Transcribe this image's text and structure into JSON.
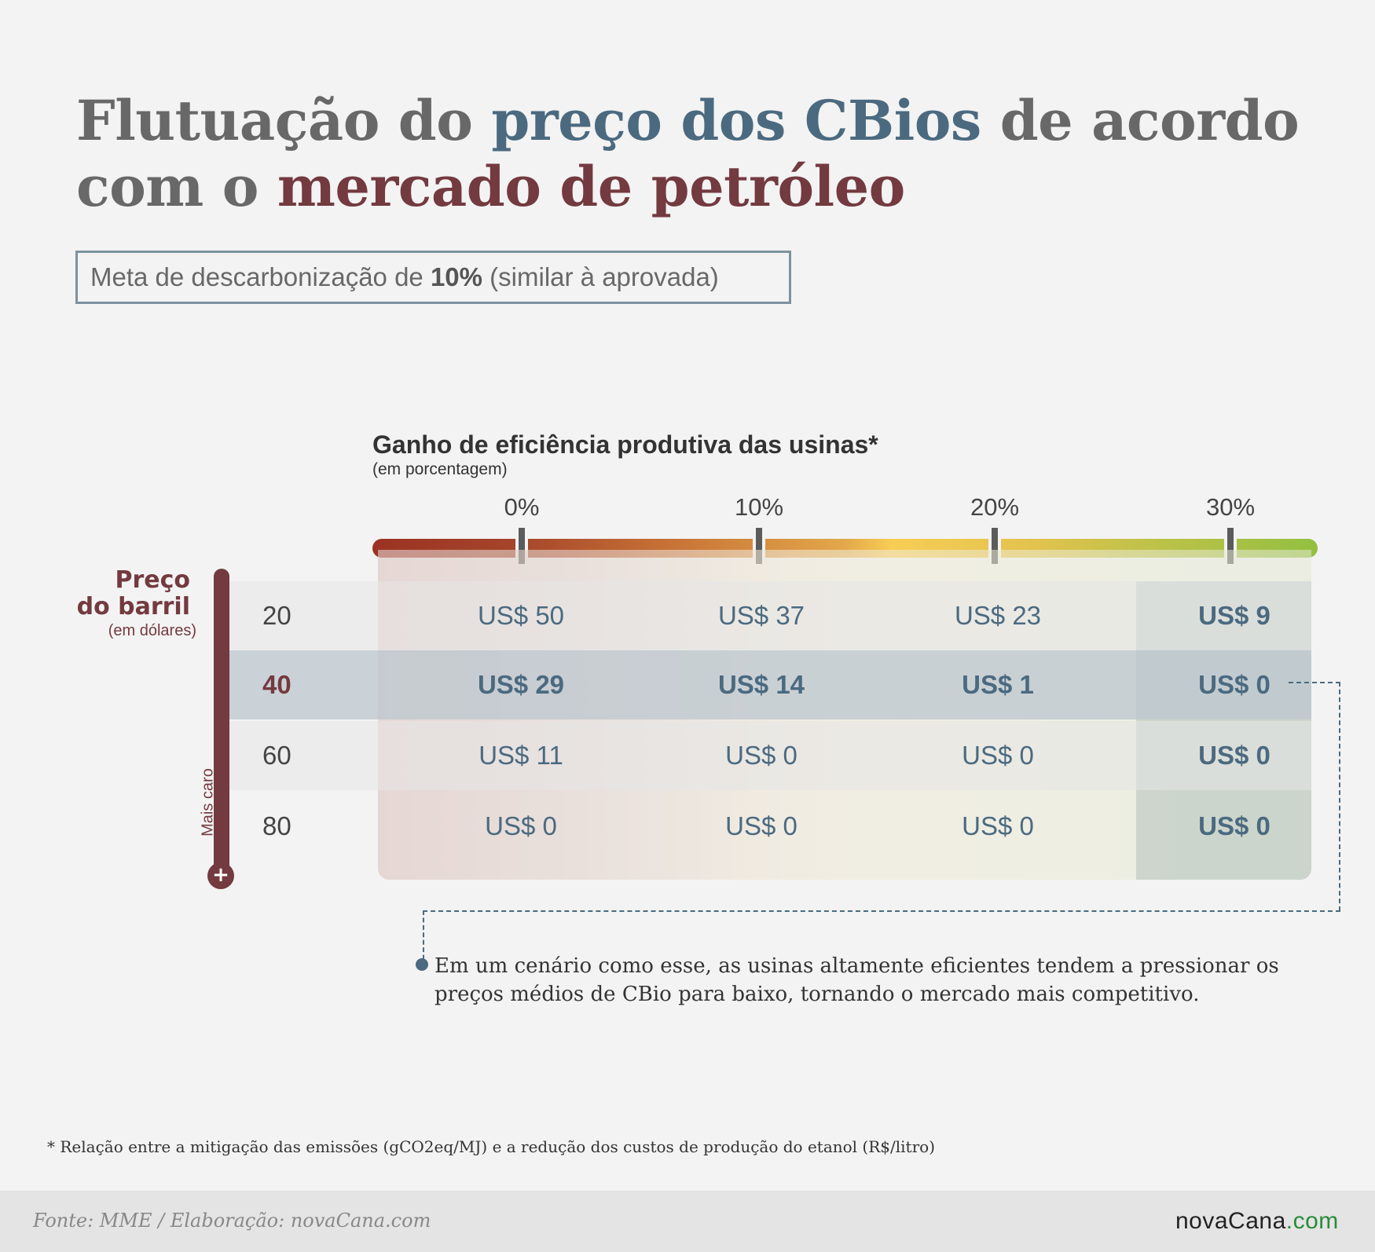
{
  "title": {
    "part1": "Flutuação do ",
    "part2": "preço dos CBios",
    "part3": " de acordo",
    "part4": "com o ",
    "part5": "mercado de petróleo"
  },
  "subtitle": {
    "text1": "Meta de descarbonização de ",
    "bold": "10%",
    "text2": " (similar à aprovada)"
  },
  "chart_data": {
    "type": "table",
    "x_axis_title": "Ganho de eficiência produtiva das usinas*",
    "x_axis_sub": "(em porcentagem)",
    "columns": [
      "0%",
      "10%",
      "20%",
      "30%"
    ],
    "y_axis_title_line1": "Preço",
    "y_axis_title_line2": "do barril",
    "y_axis_sub": "(em dólares)",
    "y_axis_direction_label": "Mais caro",
    "rows": [
      {
        "label": "20",
        "values": [
          "US$ 50",
          "US$ 37",
          "US$ 23",
          "US$ 9"
        ]
      },
      {
        "label": "40",
        "values": [
          "US$ 29",
          "US$ 14",
          "US$ 1",
          "US$ 0"
        ]
      },
      {
        "label": "60",
        "values": [
          "US$ 11",
          "US$ 0",
          "US$ 0",
          "US$ 0"
        ]
      },
      {
        "label": "80",
        "values": [
          "US$ 0",
          "US$ 0",
          "US$ 0",
          "US$ 0"
        ]
      }
    ],
    "highlighted_row": "40",
    "highlighted_column": "30%"
  },
  "note": "Em um cenário como esse, as usinas altamente eficientes tendem a pressionar os preços médios de CBio para baixo, tornando o mercado mais competitivo.",
  "footnote": "* Relação entre a mitigação das emissões (gCO2eq/MJ) e a redução dos custos de produção do etanol (R$/litro)",
  "footer": {
    "source": "Fonte: MME / Elaboração: novaCana.com",
    "logo_main": "novaCana",
    "logo_tld": ".com"
  },
  "colors": {
    "blue": "#4b6a80",
    "red": "#733a3f",
    "gray": "#686868"
  }
}
